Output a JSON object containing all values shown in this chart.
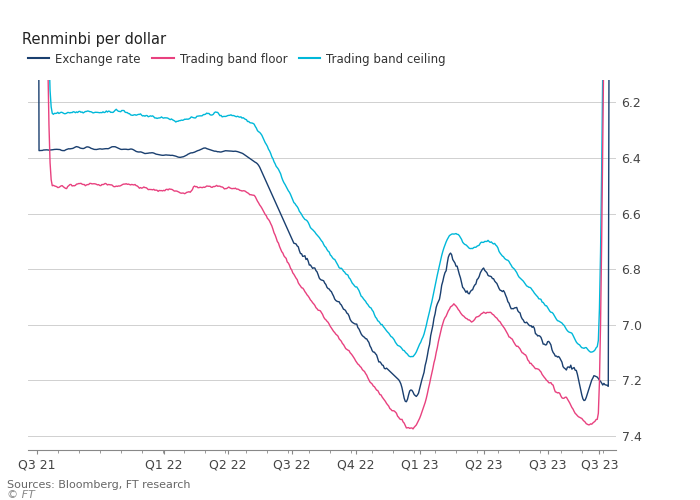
{
  "title": "Renminbi per dollar",
  "sources": "Sources: Bloomberg, FT research",
  "watermark": "© FT",
  "legend": [
    "Exchange rate",
    "Trading band floor",
    "Trading band ceiling"
  ],
  "legend_colors": [
    "#1a3f6f",
    "#e8417f",
    "#00b8d9"
  ],
  "yticks": [
    6.2,
    6.4,
    6.6,
    6.8,
    7.0,
    7.2,
    7.4
  ],
  "ylim_top": 6.12,
  "ylim_bottom": 7.45,
  "background": "#ffffff",
  "grid_color": "#d0d0d0",
  "x_tick_labels": [
    "Q3 21",
    "Q1 22",
    "Q2 22",
    "Q3 22",
    "Q4 22",
    "Q1 23",
    "Q2 23",
    "Q3 23",
    "Q3 23"
  ],
  "x_tick_pos": [
    0,
    115,
    173,
    231,
    289,
    347,
    405,
    463,
    510
  ],
  "n_points": 520,
  "spread": 0.13
}
